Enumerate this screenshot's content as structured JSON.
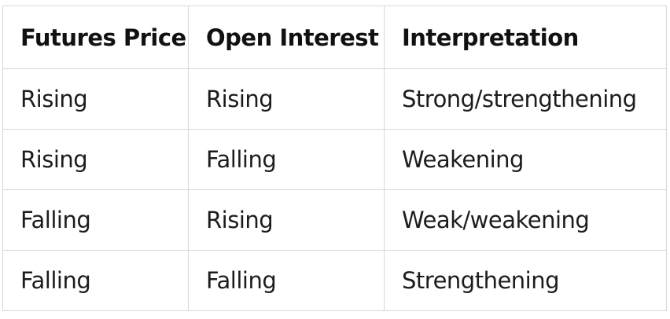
{
  "table": {
    "headers": [
      "Futures Price",
      "Open Interest",
      "Interpretation"
    ],
    "rows": [
      [
        "Rising",
        "Rising",
        "Strong/strengthening"
      ],
      [
        "Rising",
        "Falling",
        "Weakening"
      ],
      [
        "Falling",
        "Rising",
        "Weak/weakening"
      ],
      [
        "Falling",
        "Falling",
        "Strengthening"
      ]
    ]
  }
}
